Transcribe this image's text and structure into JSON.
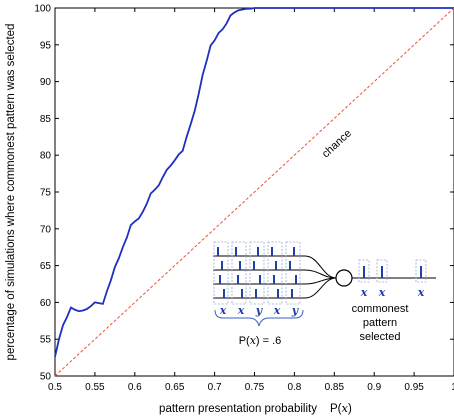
{
  "chart_data": {
    "type": "line",
    "xlabel": "pattern presentation probability",
    "xlabel_math": "P(x)",
    "ylabel": "percentage of simulations where commonest pattern was selected",
    "xlim": [
      0.5,
      1.0
    ],
    "ylim": [
      50,
      100
    ],
    "x_ticks": [
      "0.5",
      "0.55",
      "0.6",
      "0.65",
      "0.7",
      "0.75",
      "0.8",
      "0.85",
      "0.9",
      "0.95",
      "1"
    ],
    "y_ticks": [
      "50",
      "55",
      "60",
      "65",
      "70",
      "75",
      "80",
      "85",
      "90",
      "95",
      "100"
    ],
    "grid": false,
    "series": [
      {
        "color": "#1f2fbf",
        "style": "solid",
        "x": [
          0.5,
          0.505,
          0.51,
          0.515,
          0.52,
          0.525,
          0.53,
          0.535,
          0.54,
          0.545,
          0.55,
          0.555,
          0.56,
          0.565,
          0.57,
          0.575,
          0.58,
          0.585,
          0.59,
          0.595,
          0.6,
          0.605,
          0.61,
          0.615,
          0.62,
          0.625,
          0.63,
          0.635,
          0.64,
          0.645,
          0.65,
          0.655,
          0.66,
          0.665,
          0.67,
          0.675,
          0.68,
          0.685,
          0.69,
          0.695,
          0.7,
          0.705,
          0.71,
          0.715,
          0.72,
          0.725,
          0.73,
          0.735,
          0.74,
          0.745,
          0.75,
          0.755,
          0.76,
          0.765,
          0.77,
          0.775,
          0.78,
          0.785,
          0.79,
          0.795,
          0.8,
          0.805,
          0.81,
          0.815,
          0.82,
          0.825,
          0.83,
          0.835,
          0.84,
          0.845,
          0.85,
          0.86,
          0.87,
          0.88,
          0.9,
          0.95,
          1.0
        ],
        "y": [
          52.6,
          55.0,
          56.9,
          58.0,
          59.3,
          59.0,
          58.8,
          58.9,
          59.1,
          59.5,
          60.0,
          59.9,
          59.8,
          61.5,
          63.0,
          64.8,
          66.0,
          67.5,
          68.8,
          70.5,
          71.0,
          71.4,
          72.3,
          73.4,
          74.8,
          75.3,
          75.9,
          77.0,
          78.0,
          78.6,
          79.3,
          80.1,
          80.6,
          82.5,
          84.2,
          86.0,
          88.3,
          90.9,
          92.8,
          94.9,
          95.6,
          96.6,
          97.1,
          97.9,
          99.0,
          99.4,
          99.7,
          99.8,
          99.9,
          99.9,
          100.0,
          100.0,
          100.0,
          100.0,
          100.0,
          100.0,
          100.0,
          100.0,
          100.0,
          100.0,
          100.0,
          100.0,
          100.0,
          100.0,
          100.0,
          100.0,
          100.0,
          100.0,
          100.0,
          100.0,
          100.0,
          100.0,
          100.0,
          100.0,
          100.0,
          100.0,
          100.0
        ]
      },
      {
        "color": "#e8553a",
        "style": "dashed",
        "x": [
          0.5,
          1.0
        ],
        "y": [
          50,
          100
        ]
      }
    ],
    "annotations": {
      "chance_label": "chance",
      "inset_label_below": "P(x) = .6",
      "inset_sequence": [
        "x",
        "x",
        "y",
        "x",
        "y"
      ],
      "inset_output": [
        "x",
        "x",
        "x"
      ],
      "inset_caption_lines": [
        "commonest",
        "pattern",
        "selected"
      ]
    }
  }
}
